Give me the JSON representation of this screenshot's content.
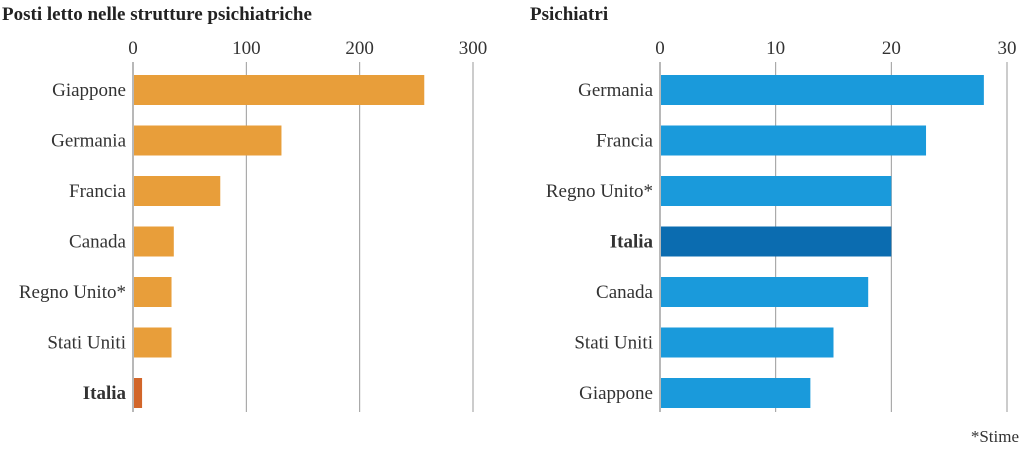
{
  "footnote": "*Stime",
  "chart_data": [
    {
      "type": "bar",
      "orientation": "horizontal",
      "title": "Posti letto nelle strutture psichiatriche",
      "categories": [
        "Giappone",
        "Germania",
        "Francia",
        "Canada",
        "Regno Unito*",
        "Stati Uniti",
        "Italia"
      ],
      "values": [
        257,
        131,
        77,
        36,
        34,
        34,
        8
      ],
      "highlight": "Italia",
      "xlim": [
        0,
        300
      ],
      "ticks": [
        0,
        100,
        200,
        300
      ],
      "grid": true,
      "colors": {
        "bar": "#E89E3A",
        "highlight": "#D2662A",
        "grid": "#9a9a9a"
      }
    },
    {
      "type": "bar",
      "orientation": "horizontal",
      "title": "Psichiatri",
      "categories": [
        "Germania",
        "Francia",
        "Regno Unito*",
        "Italia",
        "Canada",
        "Stati Uniti",
        "Giappone"
      ],
      "values": [
        28,
        23,
        20,
        20,
        18,
        15,
        13
      ],
      "highlight": "Italia",
      "xlim": [
        0,
        30
      ],
      "ticks": [
        0,
        10,
        20,
        30
      ],
      "grid": true,
      "colors": {
        "bar": "#1A9ADB",
        "highlight": "#0B6CB0",
        "grid": "#9a9a9a"
      }
    }
  ]
}
